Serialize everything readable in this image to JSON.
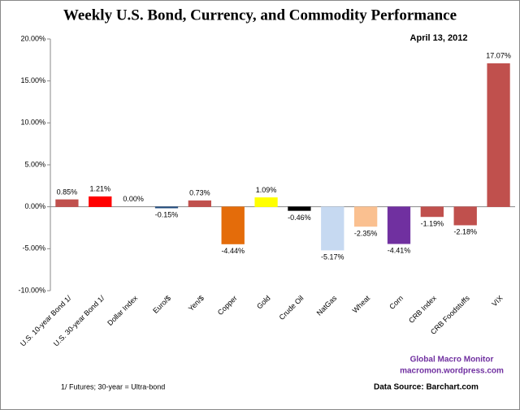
{
  "chart_data": {
    "type": "bar",
    "title": "Weekly U.S. Bond, Currency, and Commodity Performance",
    "subtitle": "April 13, 2012",
    "credit": [
      "Global Macro Monitor",
      "macromon.wordpress.com"
    ],
    "footnote": "1/ Futures; 30-year = Ultra-bond",
    "source": "Data Source:  Barchart.com",
    "categories": [
      "U.S. 10-year Bond 1/",
      "U.S. 30-year Bond 1/",
      "Dollar Index",
      "Euro/$",
      "Yen/$",
      "Copper",
      "Gold",
      "Crude Oil",
      "NatGas",
      "Wheat",
      "Corn",
      "CRB Index",
      "CRB Foodstuffs",
      "VIX"
    ],
    "values": [
      0.85,
      1.21,
      0.0,
      -0.15,
      0.73,
      -4.44,
      1.09,
      -0.46,
      -5.17,
      -2.35,
      -4.41,
      -1.19,
      -2.18,
      17.07
    ],
    "value_labels": [
      "0.85%",
      "1.21%",
      "0.00%",
      "-0.15%",
      "0.73%",
      "-4.44%",
      "1.09%",
      "-0.46%",
      "-5.17%",
      "-2.35%",
      "-4.41%",
      "-1.19%",
      "-2.18%",
      "17.07%"
    ],
    "colors": [
      "#c0504d",
      "#ff0000",
      "#1f3864",
      "#1f497d",
      "#c0504d",
      "#e46c0a",
      "#ffff00",
      "#000000",
      "#c6d9f1",
      "#fac090",
      "#7030a0",
      "#c0504d",
      "#c0504d",
      "#c0504d"
    ],
    "ylim": [
      -10,
      20
    ],
    "yticks": [
      {
        "value": -10,
        "label": "-10.00%"
      },
      {
        "value": -5,
        "label": "-5.00%"
      },
      {
        "value": 0,
        "label": "0.00%"
      },
      {
        "value": 5,
        "label": "5.00%"
      },
      {
        "value": 10,
        "label": "10.00%"
      },
      {
        "value": 15,
        "label": "15.00%"
      },
      {
        "value": 20,
        "label": "20.00%"
      }
    ],
    "grid": false
  }
}
